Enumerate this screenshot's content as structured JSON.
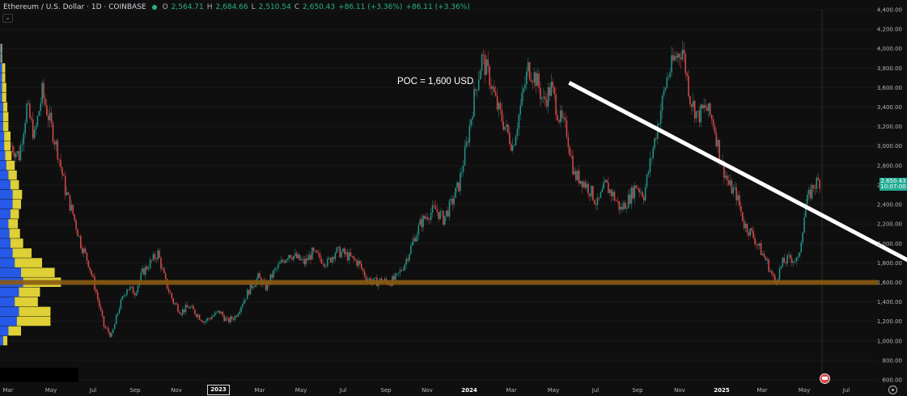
{
  "header": {
    "symbol": "Ethereum / U.S. Dollar · 1D · COINBASE",
    "open_label": "O",
    "open": "2,564.71",
    "high_label": "H",
    "high": "2,684.66",
    "low_label": "L",
    "low": "2,510.54",
    "close_label": "C",
    "close": "2,650.43",
    "change": "+86.11 (+3.36%)",
    "change2": "+86.11 (+3.36%)"
  },
  "price_tag": {
    "price": "2,650.43",
    "countdown": "10:07:00"
  },
  "annotation": {
    "text": "POC = 1,600 USD"
  },
  "colors": {
    "background": "#0f0f0f",
    "up": "#26a69a",
    "down": "#ef5350",
    "poc_band": "#8a5a12",
    "arrow": "#ffffff",
    "vp_blue": "#2962ff",
    "vp_yellow": "#f5e63a"
  },
  "chart_data": {
    "type": "candlestick",
    "ylim": [
      600,
      4400
    ],
    "y_ticks": [
      "600.00",
      "800.00",
      "1,000.00",
      "1,200.00",
      "1,400.00",
      "1,600.00",
      "1,800.00",
      "2,000.00",
      "2,200.00",
      "2,400.00",
      "2,600.00",
      "2,800.00",
      "3,000.00",
      "3,200.00",
      "3,400.00",
      "3,600.00",
      "3,800.00",
      "4,000.00",
      "4,200.00",
      "4,400.00"
    ],
    "x_ticks": [
      "Mar",
      "May",
      "Jul",
      "Sep",
      "Nov",
      "2023",
      "Mar",
      "May",
      "Jul",
      "Sep",
      "Nov",
      "2024",
      "Mar",
      "May",
      "Jul",
      "Sep",
      "Nov",
      "2025",
      "Mar",
      "May",
      "Jul"
    ],
    "price_path": [
      [
        0,
        3000
      ],
      [
        2,
        2900
      ],
      [
        4,
        3400
      ],
      [
        6,
        3100
      ],
      [
        8,
        3550
      ],
      [
        10,
        3250
      ],
      [
        12,
        2950
      ],
      [
        14,
        2550
      ],
      [
        16,
        2300
      ],
      [
        18,
        2000
      ],
      [
        20,
        1800
      ],
      [
        22,
        1500
      ],
      [
        24,
        1150
      ],
      [
        26,
        1050
      ],
      [
        28,
        1350
      ],
      [
        30,
        1550
      ],
      [
        32,
        1500
      ],
      [
        34,
        1700
      ],
      [
        36,
        1800
      ],
      [
        38,
        1900
      ],
      [
        40,
        1600
      ],
      [
        42,
        1400
      ],
      [
        44,
        1300
      ],
      [
        46,
        1350
      ],
      [
        48,
        1280
      ],
      [
        50,
        1200
      ],
      [
        52,
        1250
      ],
      [
        54,
        1300
      ],
      [
        56,
        1200
      ],
      [
        58,
        1250
      ],
      [
        60,
        1400
      ],
      [
        62,
        1550
      ],
      [
        64,
        1650
      ],
      [
        66,
        1550
      ],
      [
        68,
        1700
      ],
      [
        70,
        1800
      ],
      [
        72,
        1900
      ],
      [
        74,
        1850
      ],
      [
        76,
        1800
      ],
      [
        78,
        1900
      ],
      [
        80,
        1850
      ],
      [
        82,
        1800
      ],
      [
        84,
        1920
      ],
      [
        86,
        1900
      ],
      [
        88,
        1850
      ],
      [
        90,
        1800
      ],
      [
        92,
        1650
      ],
      [
        94,
        1600
      ],
      [
        96,
        1620
      ],
      [
        98,
        1600
      ],
      [
        100,
        1650
      ],
      [
        102,
        1800
      ],
      [
        104,
        2000
      ],
      [
        106,
        2200
      ],
      [
        108,
        2300
      ],
      [
        110,
        2350
      ],
      [
        112,
        2250
      ],
      [
        114,
        2400
      ],
      [
        116,
        2600
      ],
      [
        118,
        3000
      ],
      [
        120,
        3500
      ],
      [
        122,
        3900
      ],
      [
        124,
        3700
      ],
      [
        126,
        3400
      ],
      [
        128,
        3200
      ],
      [
        130,
        3000
      ],
      [
        132,
        3400
      ],
      [
        134,
        3800
      ],
      [
        136,
        3700
      ],
      [
        138,
        3450
      ],
      [
        140,
        3600
      ],
      [
        142,
        3300
      ],
      [
        144,
        3150
      ],
      [
        146,
        2700
      ],
      [
        148,
        2650
      ],
      [
        150,
        2550
      ],
      [
        152,
        2400
      ],
      [
        154,
        2600
      ],
      [
        156,
        2500
      ],
      [
        158,
        2350
      ],
      [
        160,
        2450
      ],
      [
        162,
        2600
      ],
      [
        164,
        2500
      ],
      [
        166,
        2900
      ],
      [
        168,
        3300
      ],
      [
        170,
        3700
      ],
      [
        172,
        3900
      ],
      [
        174,
        4000
      ],
      [
        176,
        3500
      ],
      [
        178,
        3300
      ],
      [
        180,
        3400
      ],
      [
        182,
        3250
      ],
      [
        184,
        2850
      ],
      [
        186,
        2600
      ],
      [
        188,
        2500
      ],
      [
        190,
        2200
      ],
      [
        192,
        2100
      ],
      [
        194,
        1950
      ],
      [
        196,
        1800
      ],
      [
        198,
        1600
      ],
      [
        200,
        1800
      ],
      [
        202,
        1850
      ],
      [
        204,
        1820
      ],
      [
        206,
        2400
      ],
      [
        208,
        2600
      ],
      [
        210,
        2650
      ]
    ],
    "poc": 1600,
    "annotation_text": "POC = 1,600 USD",
    "arrow_from": [
      2024.4,
      3650
    ],
    "arrow_to": [
      2025.9,
      1620
    ],
    "volume_profile": {
      "price_levels": [
        4000,
        3900,
        3800,
        3700,
        3600,
        3500,
        3400,
        3300,
        3200,
        3100,
        3000,
        2900,
        2800,
        2700,
        2600,
        2500,
        2400,
        2300,
        2200,
        2100,
        2000,
        1900,
        1800,
        1700,
        1600,
        1500,
        1400,
        1300,
        1200,
        1100,
        1000
      ],
      "blue": [
        1,
        1,
        2,
        2,
        2,
        2,
        3,
        3,
        3,
        4,
        4,
        5,
        6,
        8,
        10,
        12,
        12,
        10,
        8,
        9,
        10,
        12,
        14,
        20,
        22,
        18,
        14,
        18,
        16,
        8,
        3
      ],
      "yellow": [
        1,
        1,
        3,
        3,
        4,
        4,
        4,
        5,
        5,
        6,
        6,
        6,
        8,
        8,
        8,
        9,
        8,
        8,
        9,
        10,
        12,
        18,
        26,
        32,
        36,
        20,
        22,
        30,
        32,
        12,
        4
      ]
    }
  }
}
